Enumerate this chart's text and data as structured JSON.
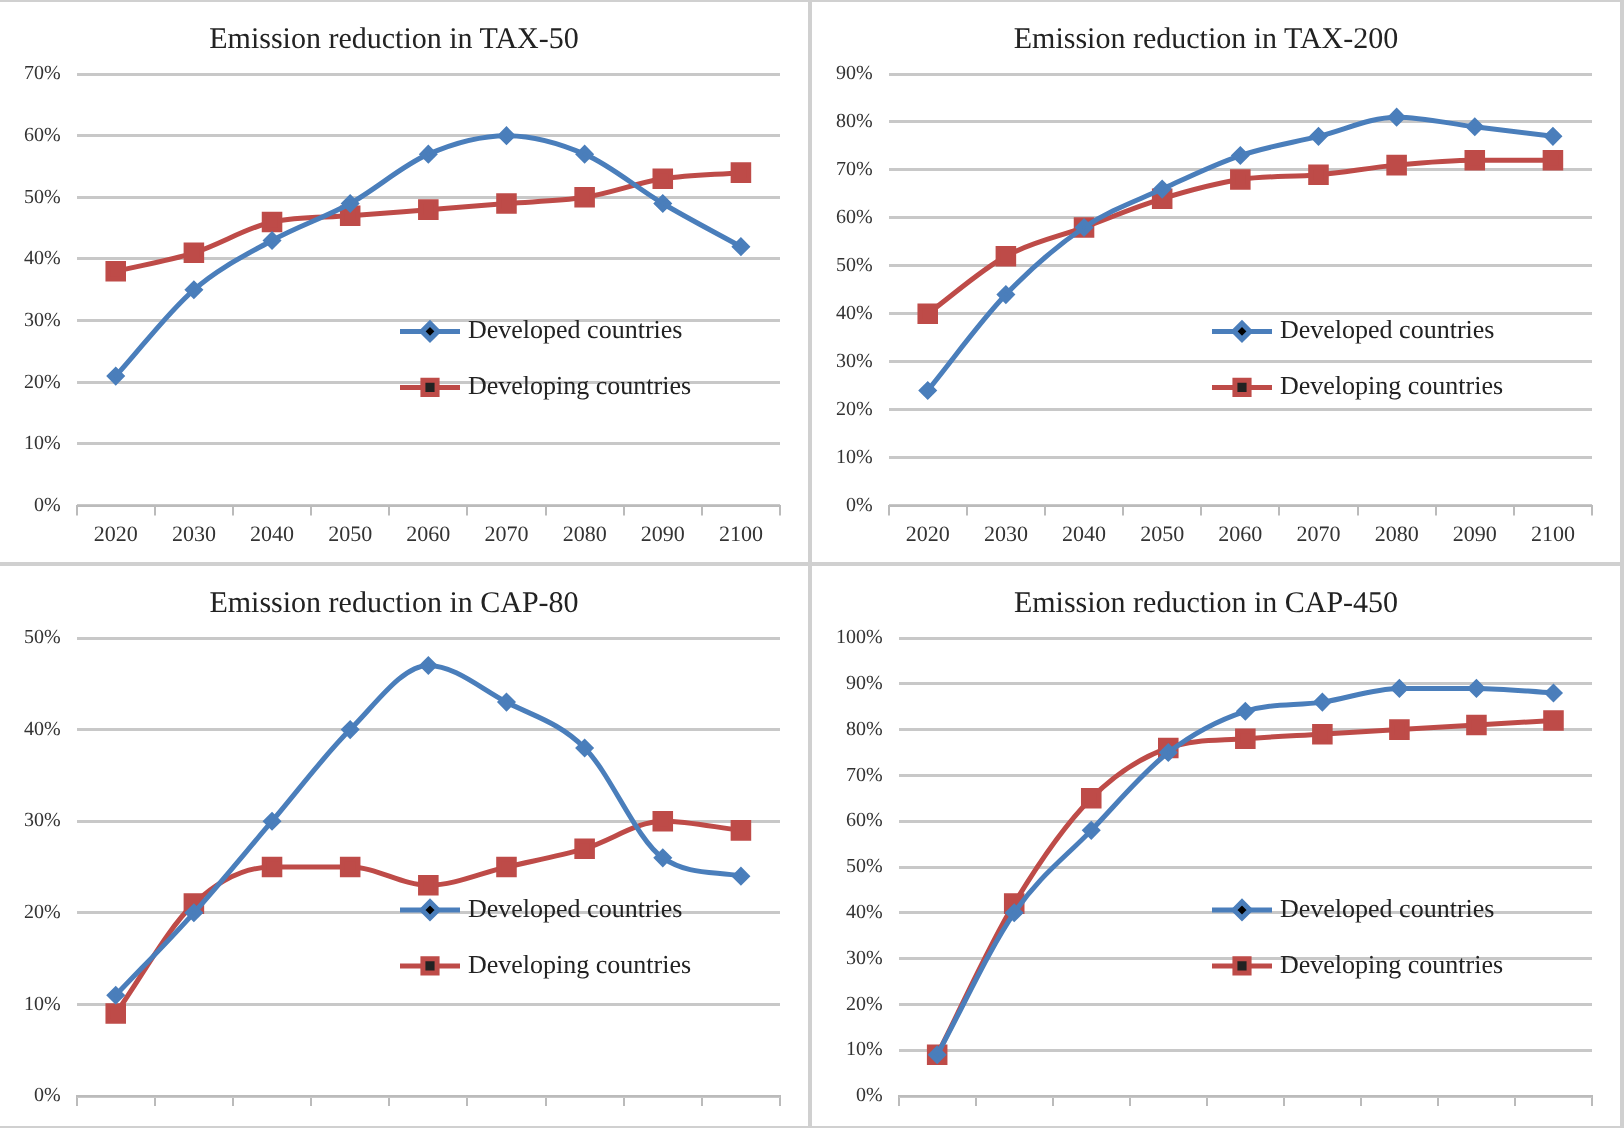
{
  "chart_data": [
    {
      "type": "line",
      "title": "Emission reduction in TAX-50",
      "categories": [
        "2020",
        "2030",
        "2040",
        "2050",
        "2060",
        "2070",
        "2080",
        "2090",
        "2100"
      ],
      "series": [
        {
          "name": "Developed countries",
          "color": "#4a7ebb",
          "marker": "diamond",
          "values": [
            21,
            35,
            43,
            49,
            57,
            60,
            57,
            49,
            42
          ]
        },
        {
          "name": "Developing countries",
          "color": "#be4b48",
          "marker": "square",
          "values": [
            38,
            41,
            46,
            47,
            48,
            49,
            50,
            53,
            54
          ]
        }
      ],
      "ylim": [
        0,
        70
      ],
      "yticks": [
        {
          "value": 0,
          "label": "0%"
        },
        {
          "value": 10,
          "label": "10%"
        },
        {
          "value": 20,
          "label": "20%"
        },
        {
          "value": 30,
          "label": "30%"
        },
        {
          "value": 40,
          "label": "40%"
        },
        {
          "value": 50,
          "label": "50%"
        },
        {
          "value": 60,
          "label": "60%"
        },
        {
          "value": 70,
          "label": "70%"
        }
      ],
      "grid": "y",
      "legend": "bottom right",
      "line_style": "solid"
    },
    {
      "type": "line",
      "title": "Emission reduction in TAX-200",
      "categories": [
        "2020",
        "2030",
        "2040",
        "2050",
        "2060",
        "2070",
        "2080",
        "2090",
        "2100"
      ],
      "series": [
        {
          "name": "Developed countries",
          "color": "#4a7ebb",
          "marker": "diamond",
          "values": [
            24,
            44,
            58,
            66,
            73,
            77,
            81,
            79,
            77
          ]
        },
        {
          "name": "Developing countries",
          "color": "#be4b48",
          "marker": "square",
          "values": [
            40,
            52,
            58,
            64,
            68,
            69,
            71,
            72,
            72
          ]
        }
      ],
      "ylim": [
        0,
        90
      ],
      "yticks": [
        {
          "value": 0,
          "label": "0%"
        },
        {
          "value": 10,
          "label": "10%"
        },
        {
          "value": 20,
          "label": "20%"
        },
        {
          "value": 30,
          "label": "30%"
        },
        {
          "value": 40,
          "label": "40%"
        },
        {
          "value": 50,
          "label": "50%"
        },
        {
          "value": 60,
          "label": "60%"
        },
        {
          "value": 70,
          "label": "70%"
        },
        {
          "value": 80,
          "label": "80%"
        },
        {
          "value": 90,
          "label": "90%"
        }
      ],
      "grid": "y",
      "legend": "bottom right",
      "line_style": "solid"
    },
    {
      "type": "line",
      "title": "Emission reduction in CAP-80",
      "categories": [
        null,
        null,
        null,
        null,
        null,
        null,
        null,
        null,
        null
      ],
      "series": [
        {
          "name": "Developed countries",
          "color": "#4a7ebb",
          "marker": "diamond",
          "values": [
            11,
            20,
            30,
            40,
            47,
            43,
            38,
            26,
            24
          ]
        },
        {
          "name": "Developing countries",
          "color": "#be4b48",
          "marker": "square",
          "values": [
            9,
            21,
            25,
            25,
            23,
            25,
            27,
            30,
            29
          ]
        }
      ],
      "ylim": [
        0,
        50
      ],
      "yticks": [
        {
          "value": 0,
          "label": "0%"
        },
        {
          "value": 10,
          "label": "10%"
        },
        {
          "value": 20,
          "label": "20%"
        },
        {
          "value": 30,
          "label": "30%"
        },
        {
          "value": 40,
          "label": "40%"
        },
        {
          "value": 50,
          "label": "50%"
        }
      ],
      "grid": "y",
      "legend": "bottom right",
      "line_style": "solid",
      "tick_labels": "y"
    },
    {
      "type": "line",
      "title": "Emission reduction in CAP-450",
      "categories": [
        null,
        null,
        null,
        null,
        null,
        null,
        null,
        null,
        null
      ],
      "series": [
        {
          "name": "Developed countries",
          "color": "#4a7ebb",
          "marker": "diamond",
          "values": [
            9,
            40,
            58,
            75,
            84,
            86,
            89,
            89,
            88
          ]
        },
        {
          "name": "Developing countries",
          "color": "#be4b48",
          "marker": "square",
          "values": [
            9,
            42,
            65,
            76,
            78,
            79,
            80,
            81,
            82
          ]
        }
      ],
      "ylim": [
        0,
        100
      ],
      "yticks": [
        {
          "value": 0,
          "label": "0%"
        },
        {
          "value": 10,
          "label": "10%"
        },
        {
          "value": 20,
          "label": "20%"
        },
        {
          "value": 30,
          "label": "30%"
        },
        {
          "value": 40,
          "label": "40%"
        },
        {
          "value": 50,
          "label": "50%"
        },
        {
          "value": 60,
          "label": "60%"
        },
        {
          "value": 70,
          "label": "70%"
        },
        {
          "value": 80,
          "label": "80%"
        },
        {
          "value": 90,
          "label": "90%"
        },
        {
          "value": 100,
          "label": "100%"
        }
      ],
      "grid": "y",
      "legend": "bottom right",
      "line_style": "solid",
      "tick_labels": "y"
    }
  ]
}
